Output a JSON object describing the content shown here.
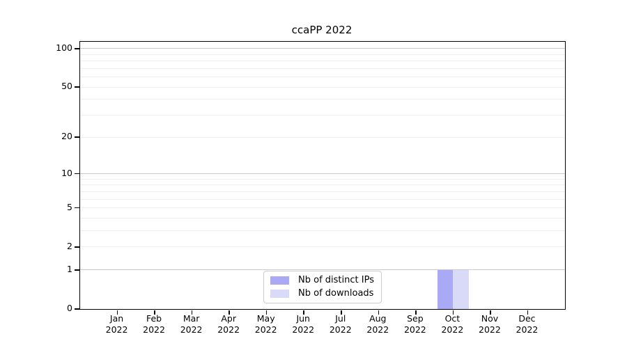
{
  "title": "ccaPP 2022",
  "colors": {
    "distinct_ips": "#a9a9f5",
    "downloads": "#d9d9f8",
    "major_grid": "#c9c9c9",
    "minor_grid": "#efefef",
    "axis": "#000000",
    "background": "#ffffff",
    "legend_border": "#cccccc"
  },
  "chart_data": {
    "type": "bar",
    "title": "ccaPP 2022",
    "categories": [
      "Jan",
      "Feb",
      "Mar",
      "Apr",
      "May",
      "Jun",
      "Jul",
      "Aug",
      "Sep",
      "Oct",
      "Nov",
      "Dec"
    ],
    "year_label": "2022",
    "series": [
      {
        "name": "Nb of distinct IPs",
        "color": "#a9a9f5",
        "values": [
          0,
          0,
          0,
          0,
          0,
          0,
          0,
          0,
          0,
          1,
          0,
          0
        ]
      },
      {
        "name": "Nb of downloads",
        "color": "#d9d9f8",
        "values": [
          0,
          0,
          0,
          0,
          0,
          0,
          0,
          0,
          0,
          1,
          0,
          0
        ]
      }
    ],
    "xlabel": "",
    "ylabel": "",
    "y_scale": "log1p",
    "y_ticks": [
      0,
      1,
      2,
      5,
      10,
      20,
      50,
      100
    ],
    "y_major_grid": [
      1,
      10,
      100
    ],
    "y_minor_grid": [
      2,
      3,
      4,
      5,
      6,
      7,
      8,
      9,
      20,
      30,
      40,
      50,
      60,
      70,
      80,
      90
    ],
    "ylim": [
      0,
      113
    ],
    "grid": true,
    "legend_position": "lower center"
  }
}
